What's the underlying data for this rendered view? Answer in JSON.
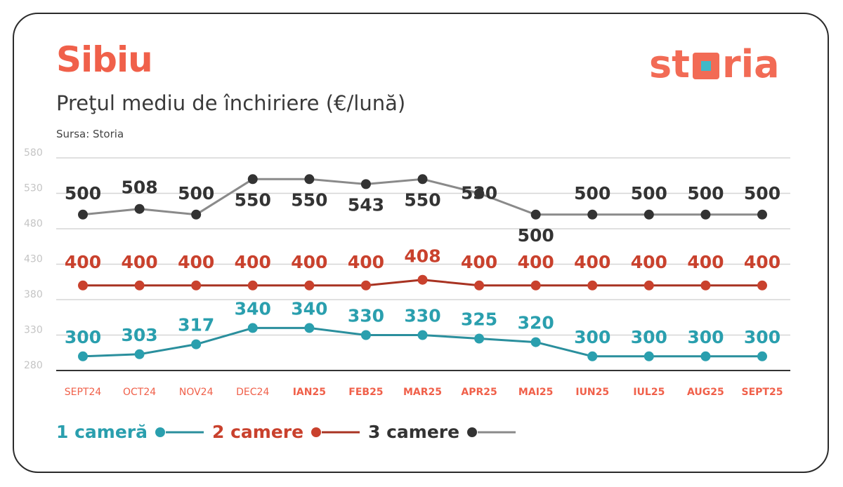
{
  "header": {
    "title": "Sibiu",
    "subtitle": "Preţul mediu de închiriere (€/lună)",
    "source": "Sursa: Storia",
    "logo_text": "storia"
  },
  "colors": {
    "title": "#f0604a",
    "logo": "#f26b55",
    "logo_square": "#3fb8c8",
    "axis_tick": "#c4c4c4",
    "grid": "#d6d6d6",
    "baseline": "#333333",
    "month_label": "#f0604a"
  },
  "chart_data": {
    "type": "line",
    "ylim": [
      280,
      580
    ],
    "yticks": [
      "580",
      "530",
      "480",
      "430",
      "380",
      "330",
      "280"
    ],
    "categories": [
      "SEPT24",
      "OCT24",
      "NOV24",
      "DEC24",
      "IAN25",
      "FEB25",
      "MAR25",
      "APR25",
      "MAI25",
      "IUN25",
      "IUL25",
      "AUG25",
      "SEPT25"
    ],
    "grid": true,
    "legend_position": "bottom-left",
    "series": [
      {
        "name": "1 cameră",
        "color": "#2a9fae",
        "line_color": "#2a8f9d",
        "values": [
          300,
          303,
          317,
          340,
          340,
          330,
          330,
          325,
          320,
          300,
          300,
          300,
          300
        ],
        "labels": [
          "300",
          "303",
          "317",
          "340",
          "340",
          "330",
          "330",
          "325",
          "320",
          "300",
          "300",
          "300",
          "300"
        ]
      },
      {
        "name": "2 camere",
        "color": "#c9412d",
        "line_color": "#a83322",
        "values": [
          400,
          400,
          400,
          400,
          400,
          400,
          408,
          400,
          400,
          400,
          400,
          400,
          400
        ],
        "labels": [
          "400",
          "400",
          "400",
          "400",
          "400",
          "400",
          "408",
          "400",
          "400",
          "400",
          "400",
          "400",
          "400"
        ]
      },
      {
        "name": "3 camere",
        "color": "#333333",
        "line_color": "#8a8a8a",
        "values": [
          500,
          508,
          500,
          550,
          550,
          543,
          550,
          530,
          500,
          500,
          500,
          500,
          500
        ],
        "labels": [
          "500",
          "508",
          "500",
          "550",
          "550",
          "543",
          "550",
          "530",
          "500",
          "500",
          "500",
          "500",
          "500"
        ]
      }
    ]
  }
}
